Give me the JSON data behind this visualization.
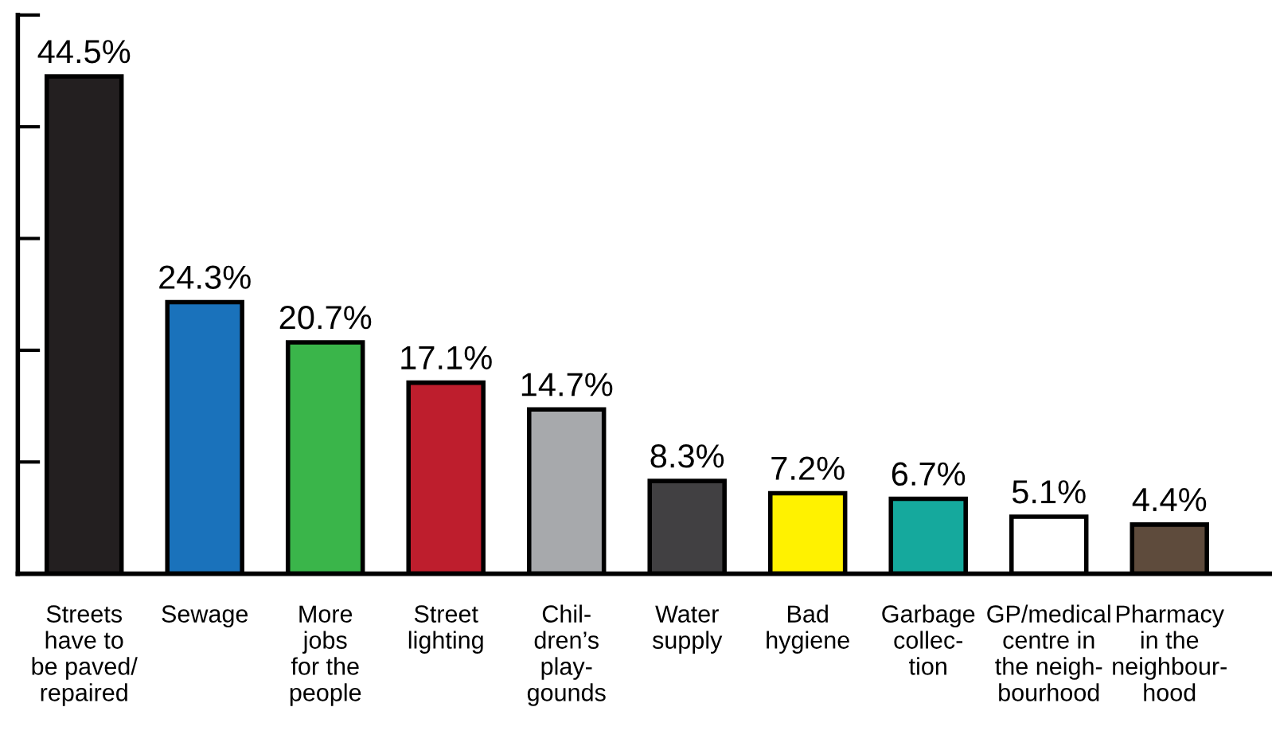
{
  "chart_data": {
    "type": "bar",
    "categories": [
      "Streets\nhave to\nbe paved/\nrepaired",
      "Sewage",
      "More\njobs\nfor the\npeople",
      "Street\nlighting",
      "Chil-\ndren’s\nplay-\ngounds",
      "Water\nsupply",
      "Bad\nhygiene",
      "Garbage\ncollec-\ntion",
      "GP/medical\ncentre in\nthe neigh-\nbourhood",
      "Pharmacy\nin the\nneighbour-\nhood"
    ],
    "values": [
      44.5,
      24.3,
      20.7,
      17.1,
      14.7,
      8.3,
      7.2,
      6.7,
      5.1,
      4.4
    ],
    "value_labels": [
      "44.5%",
      "24.3%",
      "20.7%",
      "17.1%",
      "14.7%",
      "8.3%",
      "7.2%",
      "6.7%",
      "5.1%",
      "4.4%"
    ],
    "colors": [
      "#231f20",
      "#1a72bb",
      "#3ab54a",
      "#be1e2d",
      "#a7a9ac",
      "#414042",
      "#fff200",
      "#15a99d",
      "#ffffff",
      "#5e4b3c"
    ],
    "ylim": [
      0,
      50
    ],
    "yticks": [
      {
        "value": 0,
        "label": null
      },
      {
        "value": 10,
        "label": null
      },
      {
        "value": 20,
        "label": null
      },
      {
        "value": 30,
        "label": null
      },
      {
        "value": 40,
        "label": null
      },
      {
        "value": 50,
        "label": null
      }
    ],
    "tick_labels": "x",
    "grid": false,
    "legend": false
  }
}
